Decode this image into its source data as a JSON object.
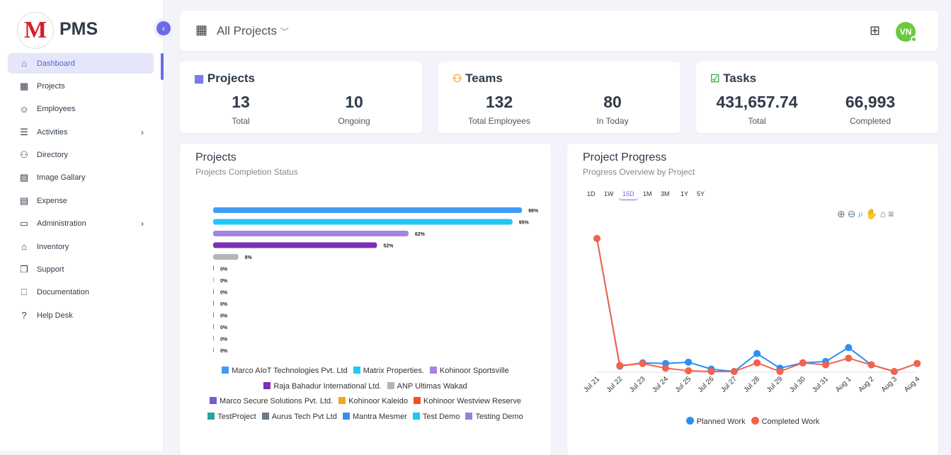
{
  "app": {
    "brand": "PMS",
    "logo_letter": "M"
  },
  "sidebar": {
    "items": [
      {
        "label": "Dashboard",
        "icon": "home-icon",
        "glyph": "⌂",
        "active": true
      },
      {
        "label": "Projects",
        "icon": "building-icon",
        "glyph": "▦"
      },
      {
        "label": "Employees",
        "icon": "user-icon",
        "glyph": "☺"
      },
      {
        "label": "Activities",
        "icon": "list-icon",
        "glyph": "☰",
        "chevron": true
      },
      {
        "label": "Directory",
        "icon": "users-icon",
        "glyph": "⚇"
      },
      {
        "label": "Image Gallary",
        "icon": "image-icon",
        "glyph": "▨"
      },
      {
        "label": "Expense",
        "icon": "receipt-icon",
        "glyph": "▤"
      },
      {
        "label": "Administration",
        "icon": "archive-icon",
        "glyph": "▭",
        "chevron": true
      },
      {
        "label": "Inventory",
        "icon": "store-icon",
        "glyph": "⌂"
      },
      {
        "label": "Support",
        "icon": "copy-icon",
        "glyph": "❐"
      },
      {
        "label": "Documentation",
        "icon": "book-icon",
        "glyph": "⎕"
      },
      {
        "label": "Help Desk",
        "icon": "question-icon",
        "glyph": "?"
      }
    ]
  },
  "header": {
    "project_select": "All Projects",
    "avatar": "VN"
  },
  "stats": [
    {
      "title": "Projects",
      "icon_color": "#6b6be8",
      "items": [
        {
          "value": "13",
          "label": "Total"
        },
        {
          "value": "10",
          "label": "Ongoing"
        }
      ]
    },
    {
      "title": "Teams",
      "icon_color": "#f5a623",
      "items": [
        {
          "value": "132",
          "label": "Total Employees"
        },
        {
          "value": "80",
          "label": "In Today"
        }
      ]
    },
    {
      "title": "Tasks",
      "icon_color": "#4caf50",
      "items": [
        {
          "value": "431,657.74",
          "label": "Total"
        },
        {
          "value": "66,993",
          "label": "Completed"
        }
      ]
    }
  ],
  "projects_chart": {
    "title": "Projects",
    "subtitle": "Projects Completion Status"
  },
  "progress_chart": {
    "title": "Project Progress",
    "subtitle": "Progress Overview by Project",
    "ranges": [
      "1D",
      "1W",
      "15D",
      "1M",
      "3M",
      "1Y",
      "5Y"
    ],
    "selected_range": "15D"
  },
  "chart_data": [
    {
      "type": "bar",
      "orientation": "horizontal",
      "xlim": [
        0,
        100
      ],
      "categories": [
        "Marco AIoT Technologies Pvt. Ltd",
        "Matrix Properties.",
        "Kohinoor Sportsville",
        "Raja Bahadur International Ltd.",
        "ANP Ultimas Wakad",
        "Marco Secure Solutions Pvt. Ltd.",
        "Kohinoor Kaleido",
        "Kohinoor Westview Reserve",
        "TestProject",
        "Aurus Tech Pvt Ltd",
        "Mantra Mesmer",
        "Test Demo",
        "Testing Demo"
      ],
      "values": [
        98,
        95,
        62,
        52,
        8,
        0,
        0,
        0,
        0,
        0,
        0,
        0,
        0
      ],
      "labels": [
        "98%",
        "95%",
        "62%",
        "52%",
        "8%",
        "0%",
        "0%",
        "0%",
        "0%",
        "0%",
        "0%",
        "0%",
        "0%"
      ],
      "colors": [
        "#3f9cf5",
        "#22c6f7",
        "#a584e0",
        "#7b2fb5",
        "#b5b5b5",
        "#6f5fd0",
        "#f5a623",
        "#f4511e",
        "#26a69a",
        "#6c7a89",
        "#3d8bf0",
        "#1ec8f0",
        "#9b7fe0"
      ],
      "legend": "bottom"
    },
    {
      "type": "line",
      "x": [
        "Jul 21",
        "Jul 22",
        "Jul 23",
        "Jul 24",
        "Jul 25",
        "Jul 26",
        "Jul 27",
        "Jul 28",
        "Jul 29",
        "Jul 30",
        "Jul 31",
        "Aug 1",
        "Aug 2",
        "Aug 3",
        "Aug 4"
      ],
      "series": [
        {
          "name": "Planned Work",
          "color": "#2b8ff5",
          "values": [
            100,
            4,
            6.5,
            6,
            7,
            1.8,
            0,
            13.5,
            2.5,
            6.5,
            7.5,
            18,
            5,
            0,
            6
          ]
        },
        {
          "name": "Completed Work",
          "color": "#f4624a",
          "values": [
            100,
            4.5,
            6,
            2.5,
            0.5,
            0,
            0,
            6.5,
            0,
            6.5,
            5,
            10,
            5,
            0,
            6
          ]
        }
      ],
      "ylim": [
        0,
        100
      ],
      "legend": "bottom",
      "grid": false
    }
  ]
}
